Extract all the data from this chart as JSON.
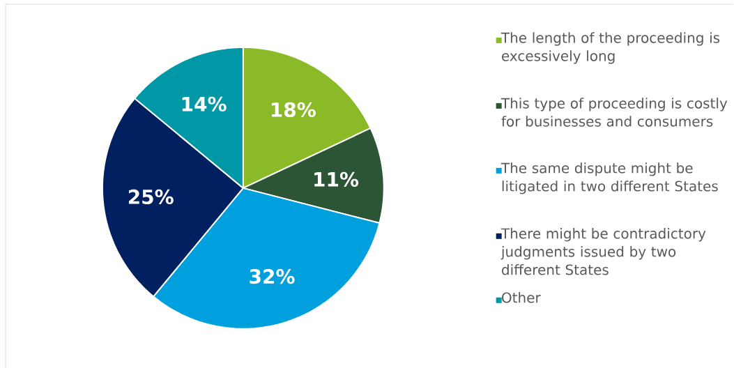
{
  "chart_data": {
    "type": "pie",
    "categories": [
      "The length of the proceeding is excessively long",
      "This type of proceeding is costly for businesses and consumers",
      "The same dispute might be litigated in two different States",
      "There might be contradictory judgments issued by two different States",
      "Other"
    ],
    "values": [
      18,
      11,
      32,
      25,
      14
    ],
    "colors": [
      "#8aba27",
      "#2c5535",
      "#00a0df",
      "#002060",
      "#0097a7"
    ],
    "value_labels": [
      "18%",
      "11%",
      "32%",
      "25%",
      "14%"
    ],
    "legend": "right"
  }
}
